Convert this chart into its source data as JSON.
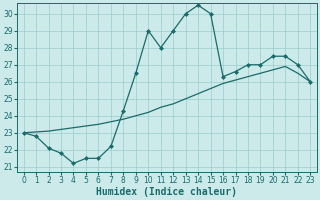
{
  "xlabel": "Humidex (Indice chaleur)",
  "bg_color": "#cceaea",
  "grid_color": "#99cccc",
  "line_color": "#1a6b6b",
  "xlim": [
    -0.5,
    23.5
  ],
  "ylim": [
    20.7,
    30.6
  ],
  "yticks": [
    21,
    22,
    23,
    24,
    25,
    26,
    27,
    28,
    29,
    30
  ],
  "xticks": [
    0,
    1,
    2,
    3,
    4,
    5,
    6,
    7,
    8,
    9,
    10,
    11,
    12,
    13,
    14,
    15,
    16,
    17,
    18,
    19,
    20,
    21,
    22,
    23
  ],
  "line1_x": [
    0,
    1,
    2,
    3,
    4,
    5,
    6,
    7,
    8,
    9,
    10,
    11,
    12,
    13,
    14,
    15,
    16,
    17,
    18,
    19,
    20,
    21,
    22,
    23
  ],
  "line1_y": [
    23.0,
    22.8,
    22.1,
    21.8,
    21.2,
    21.5,
    21.5,
    22.2,
    24.3,
    26.5,
    29.0,
    28.0,
    29.0,
    30.0,
    30.5,
    30.0,
    26.3,
    26.6,
    27.0,
    27.0,
    27.5,
    27.5,
    27.0,
    26.0
  ],
  "line2_x": [
    0,
    1,
    2,
    3,
    4,
    5,
    6,
    7,
    8,
    9,
    10,
    11,
    12,
    13,
    14,
    15,
    16,
    17,
    18,
    19,
    20,
    21,
    22,
    23
  ],
  "line2_y": [
    23.0,
    23.05,
    23.1,
    23.2,
    23.3,
    23.4,
    23.5,
    23.65,
    23.8,
    24.0,
    24.2,
    24.5,
    24.7,
    25.0,
    25.3,
    25.6,
    25.9,
    26.1,
    26.3,
    26.5,
    26.7,
    26.9,
    26.5,
    26.0
  ],
  "marker": "D",
  "marker_size": 2.0,
  "line_width": 0.9,
  "xlabel_fontsize": 7,
  "tick_fontsize": 5.5
}
